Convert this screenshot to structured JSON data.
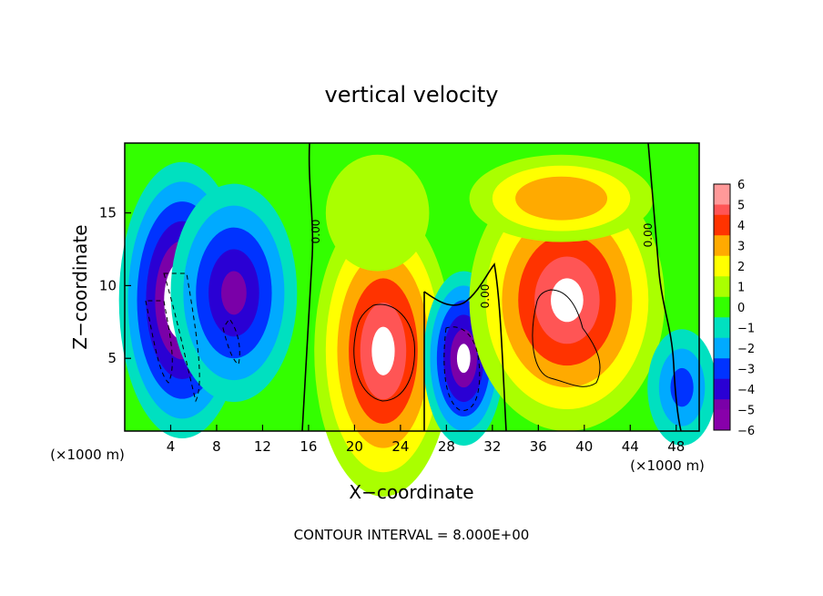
{
  "chart_data": {
    "type": "heatmap",
    "title": "vertical velocity",
    "xlabel": "X−coordinate",
    "ylabel": "Z−coordinate",
    "x_unit_left": "(×1000 m)",
    "x_unit_right": "(×1000 m)",
    "footer": "CONTOUR INTERVAL = 8.000E+00",
    "xlim": [
      0,
      50
    ],
    "ylim": [
      0,
      19.8
    ],
    "x_ticks": [
      4,
      8,
      12,
      16,
      20,
      24,
      28,
      32,
      36,
      40,
      44,
      48
    ],
    "x_tick_labels": [
      "4",
      "8",
      "12",
      "16",
      "20",
      "24",
      "28",
      "32",
      "36",
      "40",
      "44",
      "48"
    ],
    "y_ticks": [
      5,
      10,
      15
    ],
    "y_tick_labels": [
      "5",
      "10",
      "15"
    ],
    "colorbar": {
      "min": -6,
      "max": 6,
      "tick_labels": [
        "6",
        "5",
        "4",
        "3",
        "2",
        "1",
        "0",
        "−1",
        "−2",
        "−3",
        "−4",
        "−5",
        "−6"
      ]
    },
    "contour_labels": [
      "0.00",
      "0.00",
      "0.00"
    ],
    "features": [
      {
        "kind": "downdraft",
        "x": 5.0,
        "z": 9.0,
        "rx": 5.5,
        "rz": 9.5,
        "v": -6.5
      },
      {
        "kind": "downdraft",
        "x": 9.5,
        "z": 9.5,
        "rx": 5.5,
        "rz": 7.5,
        "v": -4.5
      },
      {
        "kind": "updraft",
        "x": 22.5,
        "z": 5.5,
        "rx": 6.0,
        "rz": 10.0,
        "v": 5.5
      },
      {
        "kind": "updraft",
        "x": 22.0,
        "z": 15.0,
        "rx": 4.5,
        "rz": 4.0,
        "v": 1.5
      },
      {
        "kind": "downdraft",
        "x": 29.5,
        "z": 5.0,
        "rx": 3.5,
        "rz": 6.0,
        "v": -6.0
      },
      {
        "kind": "updraft",
        "x": 38.5,
        "z": 9.0,
        "rx": 8.5,
        "rz": 9.0,
        "v": 6.0
      },
      {
        "kind": "updraft",
        "x": 38.0,
        "z": 16.0,
        "rx": 8.0,
        "rz": 3.0,
        "v": 3.5
      },
      {
        "kind": "downdraft",
        "x": 48.5,
        "z": 3.0,
        "rx": 3.0,
        "rz": 4.0,
        "v": -2.5
      }
    ]
  }
}
